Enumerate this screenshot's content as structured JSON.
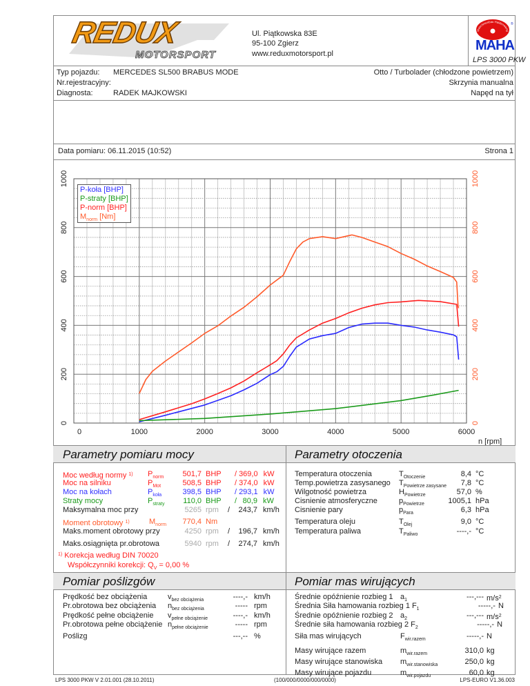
{
  "header": {
    "logo_text": "REDUX",
    "logo_subtext": "MOTORSPORT",
    "address_line1": "Ul. Piątkowska 83E",
    "address_line2": "95-100 Zgierz",
    "website": "www.reduxmotorsport.pl",
    "maha_logo_text": "MAHA",
    "maha_seal_text": "Maschinenbau Haldenwang",
    "device": "LPS 3000 PKW"
  },
  "vehicle": {
    "type_label": "Typ pojazdu:",
    "type_value": "MERCEDES SL500 BRABUS MODE",
    "reg_label": "Nr.rejestracyjny:",
    "reg_value": "",
    "diag_label": "Diagnosta:",
    "diag_value": "RADEK MAJKOWSKI",
    "engine": "Otto / Turbolader (chłodzone powietrzem)",
    "gearbox": "Skrzynia manualna",
    "drive": "Napęd na tył"
  },
  "measurement": {
    "date": "Data pomiaru: 06.11.2015 (10:52)",
    "page": "Strona 1"
  },
  "chart_data": {
    "type": "line",
    "xlabel": "n [rpm]",
    "xlim": [
      0,
      6000
    ],
    "xticks": [
      "0",
      "1000",
      "2000",
      "3000",
      "4000",
      "5000",
      "6000"
    ],
    "ylim": [
      0,
      1000
    ],
    "yticks_left": [
      "0",
      "200",
      "400",
      "600",
      "800",
      "1000"
    ],
    "yticks_right": [
      "0",
      "200",
      "400",
      "600",
      "800",
      "1000"
    ],
    "grid": true,
    "legend_position": "top-left",
    "series": [
      {
        "name": "P-koła [BHP]",
        "color": "#2a2aff",
        "x": [
          1000,
          1400,
          1800,
          2000,
          2200,
          2400,
          2600,
          2800,
          3000,
          3100,
          3200,
          3300,
          3400,
          3600,
          3800,
          4000,
          4200,
          4400,
          4600,
          4800,
          5000,
          5200,
          5400,
          5600,
          5800,
          5850,
          5880
        ],
        "y": [
          5,
          32,
          60,
          74,
          93,
          112,
          136,
          163,
          198,
          210,
          232,
          274,
          311,
          344,
          358,
          367,
          391,
          405,
          409,
          409,
          400,
          393,
          381,
          372,
          361,
          353,
          260
        ]
      },
      {
        "name": "P-straty [BHP]",
        "color": "#1a9a1a",
        "x": [
          1000,
          2000,
          3000,
          4000,
          5000,
          5500,
          5880
        ],
        "y": [
          10,
          19,
          37,
          59,
          92,
          115,
          134
        ]
      },
      {
        "name": "P-norm [BHP]",
        "color": "#ff2020",
        "x": [
          1000,
          1400,
          1800,
          2000,
          2200,
          2400,
          2600,
          2800,
          3000,
          3100,
          3200,
          3300,
          3400,
          3600,
          3800,
          4000,
          4200,
          4400,
          4600,
          4800,
          5000,
          5265,
          5600,
          5850,
          5880
        ],
        "y": [
          14,
          46,
          79,
          99,
          121,
          144,
          172,
          206,
          238,
          255,
          283,
          320,
          349,
          381,
          409,
          428,
          451,
          470,
          484,
          493,
          496,
          502,
          497,
          486,
          395
        ]
      },
      {
        "name": "Mnorm [Nm]",
        "name_main": "M",
        "name_sub": "norm",
        "name_unit": " [Nm]",
        "color": "#ff5a2a",
        "x": [
          1000,
          1100,
          1200,
          1400,
          1600,
          1800,
          2000,
          2200,
          2400,
          2600,
          2800,
          3000,
          3200,
          3300,
          3400,
          3500,
          3600,
          3800,
          4000,
          4250,
          4400,
          4600,
          4800,
          5000,
          5200,
          5400,
          5600,
          5800,
          5850,
          5870,
          5880
        ],
        "y": [
          121,
          178,
          212,
          254,
          291,
          328,
          367,
          398,
          438,
          474,
          517,
          565,
          605,
          662,
          713,
          741,
          755,
          763,
          755,
          770,
          760,
          741,
          722,
          694,
          671,
          643,
          620,
          596,
          577,
          480,
          470
        ]
      }
    ]
  },
  "power": {
    "title": "Parametry pomiaru mocy",
    "rows": [
      {
        "label": "Moc według normy",
        "note": "1)",
        "sym": "P",
        "sub": "norm",
        "v1": "501,7",
        "u1": "BHP",
        "sep": "/",
        "v2": "369,0",
        "u2": "kW"
      },
      {
        "label": "Moc na silniku",
        "sym": "P",
        "sub": "Mot",
        "v1": "508,5",
        "u1": "BHP",
        "sep": "/",
        "v2": "374,0",
        "u2": "kW"
      },
      {
        "label": "Moc na kołach",
        "sym": "P",
        "sub": "koła",
        "v1": "398,5",
        "u1": "BHP",
        "sep": "/",
        "v2": "293,1",
        "u2": "kW"
      },
      {
        "label": "Straty mocy",
        "sym": "P",
        "sub": "straty",
        "v1": "110,0",
        "u1": "BHP",
        "sep": "/",
        "v2": "80,9",
        "u2": "kW"
      },
      {
        "label": "Maksymalna moc przy",
        "v1": "5265",
        "u1": "rpm",
        "sep": "/",
        "v2": "243,7",
        "u2": "km/h"
      },
      {
        "label": "Moment obrotowy",
        "note": "1)",
        "sym": "M",
        "sub": "norm",
        "v1": "770,4",
        "u1": "Nm"
      },
      {
        "label": "Maks.moment obrotowy przy",
        "v1": "4250",
        "u1": "rpm",
        "sep": "/",
        "v2": "196,7",
        "u2": "km/h"
      },
      {
        "label": "Maks.osiągnięta pr.obrotowa",
        "v1": "5940",
        "u1": "rpm",
        "sep": "/",
        "v2": "274,7",
        "u2": "km/h"
      }
    ],
    "footnote_mark": "1)",
    "footnote_line1": "Korekcja według DIN 70020",
    "footnote_line2a": "Współczynniki korekcji: Q",
    "footnote_line2sub": "V",
    "footnote_line2b": " =   0,00 %"
  },
  "ambient": {
    "title": "Parametry otoczenia",
    "rows": [
      {
        "label": "Temperatura otoczenia",
        "sym": "T",
        "sub": "Otoczenie",
        "value": "8,4",
        "unit": "°C"
      },
      {
        "label": "Temp.powietrza zasysanego",
        "sym": "T",
        "sub": "Powietrze zasysane",
        "value": "7,8",
        "unit": "°C"
      },
      {
        "label": "Wilgotność powietrza",
        "sym": "H",
        "sub": "Powietrze",
        "value": "57,0",
        "unit": "%"
      },
      {
        "label": "Cisnienie atmosferyczne",
        "sym": "p",
        "sub": "Powietrze",
        "value": "1005,1",
        "unit": "hPa"
      },
      {
        "label": "Cisnienie pary",
        "sym": "p",
        "sub": "Para",
        "value": "6,3",
        "unit": "hPa"
      },
      {
        "label": "Temperatura oleju",
        "sym": "T",
        "sub": "Olej",
        "value": "9,0",
        "unit": "°C"
      },
      {
        "label": "Temperatura paliwa",
        "sym": "T",
        "sub": "Paliwo",
        "value": "----,-",
        "unit": "°C"
      }
    ]
  },
  "slip": {
    "title": "Pomiar poślizgów",
    "rows": [
      {
        "label": "Prędkość bez obciążenia",
        "sym": "v",
        "sub": "bez obciążenia",
        "value": "----,-",
        "unit": "km/h"
      },
      {
        "label": "Pr.obrotowa bez obciążenia",
        "sym": "n",
        "sub": "bez obciążenia",
        "value": "-----",
        "unit": "rpm"
      },
      {
        "label": "Prędkość pełne obciążenie",
        "sym": "v",
        "sub": "pełne obciążenie",
        "value": "----,-",
        "unit": "km/h"
      },
      {
        "label": "Pr.obrotowa pełne obciążenie",
        "sym": "n",
        "sub": "pełne obciążenie",
        "value": "-----",
        "unit": "rpm"
      },
      {
        "label": "Poślizg",
        "sym": "",
        "sub": "",
        "value": "---,--",
        "unit": "%"
      }
    ]
  },
  "inertia": {
    "title": "Pomiar mas wirujących",
    "rows": [
      {
        "label": "Średnie opóźnienie rozbieg 1",
        "sym": "a",
        "sub": "1",
        "value": "---,---",
        "unit": "m/s",
        "unit_sup": "2"
      },
      {
        "label": "Średnia Siła hamowania rozbieg 1",
        "sym": "F",
        "sub": "1",
        "value": "-----,-",
        "unit": "N"
      },
      {
        "label": "Średnie opóźnienie rozbieg 2",
        "sym": "a",
        "sub": "2",
        "value": "---,---",
        "unit": "m/s",
        "unit_sup": "2"
      },
      {
        "label": "Średnie siła hamowania rozbieg 2",
        "sym": "F",
        "sub": "2",
        "value": "-----,-",
        "unit": "N"
      },
      {
        "label": "Siła mas wirujących",
        "sym": "F",
        "sub": "wir.razem",
        "value": "-----,-",
        "unit": "N"
      },
      {
        "label": "Masy wirujące razem",
        "sym": "m",
        "sub": "wir.razem",
        "value": "310,0",
        "unit": "kg"
      },
      {
        "label": "Masy wirujące stanowiska",
        "sym": "m",
        "sub": "wir.stanowiska",
        "value": "250,0",
        "unit": "kg"
      },
      {
        "label": "Masy wirujące pojazdu",
        "sym": "m",
        "sub": "wir.pojazdu",
        "value": "60,0",
        "unit": "kg"
      }
    ]
  },
  "footer": {
    "left": "LPS 3000 PKW V 2.01.001 (28.10.2011)",
    "center": "(100/000/0000/000/0000)",
    "right": "LPS-EURO V1.36.003"
  },
  "colors": {
    "kola": "#2a2aff",
    "straty": "#1a9a1a",
    "norm": "#ff2020",
    "moment": "#ff5a2a"
  }
}
